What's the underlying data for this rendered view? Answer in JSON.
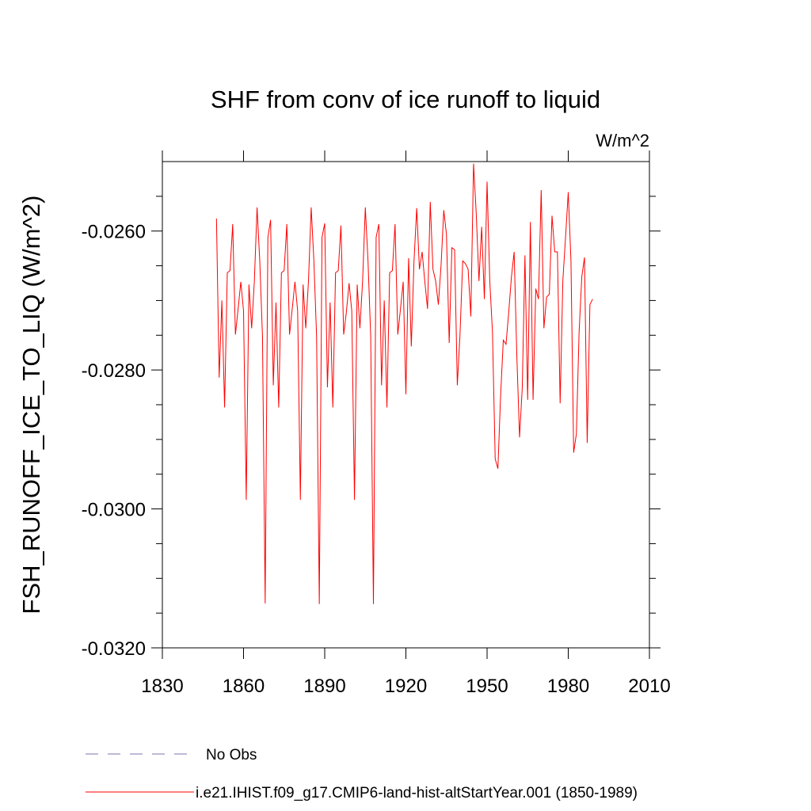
{
  "chart_data": {
    "type": "line",
    "title": "SHF from conv of ice runoff to liquid",
    "units": "W/m^2",
    "ylabel": "FSH_RUNOFF_ICE_TO_LIQ  (W/m^2)",
    "xlim": [
      1830,
      2010
    ],
    "xticks": [
      1830,
      1860,
      1890,
      1920,
      1950,
      1980,
      2010
    ],
    "ylim": [
      -0.032,
      -0.025
    ],
    "yticks": [
      {
        "value": -0.032,
        "label": "-0.0320"
      },
      {
        "value": -0.03,
        "label": "-0.0300"
      },
      {
        "value": -0.028,
        "label": "-0.0280"
      },
      {
        "value": -0.026,
        "label": "-0.0260"
      }
    ],
    "yminorticks": [
      -0.0315,
      -0.031,
      -0.0305,
      -0.0295,
      -0.029,
      -0.0285,
      -0.0275,
      -0.027,
      -0.0265,
      -0.0255
    ],
    "x": [
      1850,
      1851,
      1852,
      1853,
      1854,
      1855,
      1856,
      1857,
      1858,
      1859,
      1860,
      1861,
      1862,
      1863,
      1864,
      1865,
      1866,
      1867,
      1868,
      1869,
      1870,
      1871,
      1872,
      1873,
      1874,
      1875,
      1876,
      1877,
      1878,
      1879,
      1880,
      1881,
      1882,
      1883,
      1884,
      1885,
      1886,
      1887,
      1888,
      1889,
      1890,
      1891,
      1892,
      1893,
      1894,
      1895,
      1896,
      1897,
      1898,
      1899,
      1900,
      1901,
      1902,
      1903,
      1904,
      1905,
      1906,
      1907,
      1908,
      1909,
      1910,
      1911,
      1912,
      1913,
      1914,
      1915,
      1916,
      1917,
      1918,
      1919,
      1920,
      1921,
      1922,
      1923,
      1924,
      1925,
      1926,
      1927,
      1928,
      1929,
      1930,
      1931,
      1932,
      1933,
      1934,
      1935,
      1936,
      1937,
      1938,
      1939,
      1940,
      1941,
      1942,
      1943,
      1944,
      1945,
      1946,
      1947,
      1948,
      1949,
      1950,
      1951,
      1952,
      1953,
      1954,
      1955,
      1956,
      1957,
      1958,
      1959,
      1960,
      1961,
      1962,
      1963,
      1964,
      1965,
      1966,
      1967,
      1968,
      1969,
      1970,
      1971,
      1972,
      1973,
      1974,
      1975,
      1976,
      1977,
      1978,
      1979,
      1980,
      1981,
      1982,
      1983,
      1984,
      1985,
      1986,
      1987,
      1988,
      1989
    ],
    "series": [
      {
        "name": "No Obs",
        "color": "#8070b0",
        "dash": true,
        "values": [
          null,
          null,
          null,
          null,
          null,
          null,
          null,
          null,
          null,
          null,
          null,
          null,
          null,
          null,
          null,
          null,
          null,
          null,
          null,
          null,
          null,
          null,
          null,
          null,
          null,
          null,
          null,
          null,
          null,
          null,
          null,
          null,
          null,
          null,
          null,
          null,
          null,
          null,
          null,
          null,
          null,
          null,
          null,
          null,
          null,
          null,
          null,
          null,
          null,
          null,
          null,
          null,
          null,
          null,
          null,
          null,
          null,
          null,
          null,
          null,
          null,
          null,
          null,
          null,
          null,
          null,
          null,
          null,
          null,
          null,
          null,
          null,
          null,
          null,
          null,
          null,
          null,
          null,
          null,
          null,
          null,
          null,
          null,
          null,
          null,
          null,
          null,
          null,
          null,
          null,
          null,
          null,
          null,
          null,
          null,
          null,
          null,
          null,
          null,
          null,
          null,
          null,
          null,
          null,
          null,
          null,
          null,
          null,
          null,
          null,
          null,
          null,
          null,
          null,
          null,
          null,
          null,
          null,
          null,
          null,
          null,
          null,
          null,
          null,
          null,
          null,
          null,
          null,
          null,
          null,
          null,
          null,
          null,
          null,
          null,
          null,
          null,
          null,
          null,
          null
        ]
      },
      {
        "name": "i.e21.IHIST.f09_g17.CMIP6-land-hist-altStartYear.001 (1850-1989)",
        "color": "#ff0000",
        "dash": false,
        "values": [
          -0.02582,
          -0.02811,
          -0.027,
          -0.02854,
          -0.0266,
          -0.02657,
          -0.0259,
          -0.02749,
          -0.02712,
          -0.02673,
          -0.02715,
          -0.02987,
          -0.02677,
          -0.0274,
          -0.02672,
          -0.02566,
          -0.02643,
          -0.02752,
          -0.03136,
          -0.02609,
          -0.02584,
          -0.02822,
          -0.02703,
          -0.02854,
          -0.0266,
          -0.02657,
          -0.0259,
          -0.02749,
          -0.02712,
          -0.02673,
          -0.02715,
          -0.02987,
          -0.02677,
          -0.0274,
          -0.02672,
          -0.02566,
          -0.02643,
          -0.02752,
          -0.03137,
          -0.02609,
          -0.02589,
          -0.02825,
          -0.02703,
          -0.02854,
          -0.0266,
          -0.02657,
          -0.02592,
          -0.02749,
          -0.02717,
          -0.02675,
          -0.02715,
          -0.02987,
          -0.02677,
          -0.0274,
          -0.02672,
          -0.02566,
          -0.02643,
          -0.02752,
          -0.03137,
          -0.02609,
          -0.0259,
          -0.02822,
          -0.027,
          -0.02854,
          -0.0266,
          -0.02657,
          -0.0259,
          -0.02749,
          -0.02712,
          -0.02673,
          -0.02835,
          -0.02639,
          -0.02766,
          -0.02643,
          -0.02567,
          -0.02655,
          -0.0263,
          -0.02673,
          -0.02712,
          -0.02558,
          -0.02655,
          -0.02672,
          -0.02706,
          -0.02649,
          -0.0257,
          -0.02605,
          -0.02761,
          -0.02624,
          -0.02627,
          -0.02822,
          -0.02749,
          -0.02643,
          -0.02647,
          -0.02655,
          -0.02723,
          -0.02503,
          -0.02575,
          -0.02672,
          -0.02594,
          -0.02698,
          -0.02529,
          -0.02672,
          -0.02746,
          -0.02928,
          -0.02942,
          -0.02837,
          -0.02757,
          -0.02763,
          -0.02717,
          -0.02666,
          -0.0263,
          -0.0278,
          -0.02897,
          -0.02826,
          -0.02635,
          -0.02843,
          -0.02587,
          -0.02843,
          -0.02683,
          -0.02698,
          -0.02541,
          -0.0274,
          -0.02695,
          -0.02691,
          -0.02578,
          -0.0263,
          -0.0263,
          -0.02848,
          -0.02671,
          -0.02609,
          -0.02544,
          -0.02643,
          -0.02919,
          -0.02892,
          -0.02746,
          -0.02666,
          -0.02638,
          -0.02905,
          -0.02706,
          -0.02698
        ]
      }
    ]
  }
}
